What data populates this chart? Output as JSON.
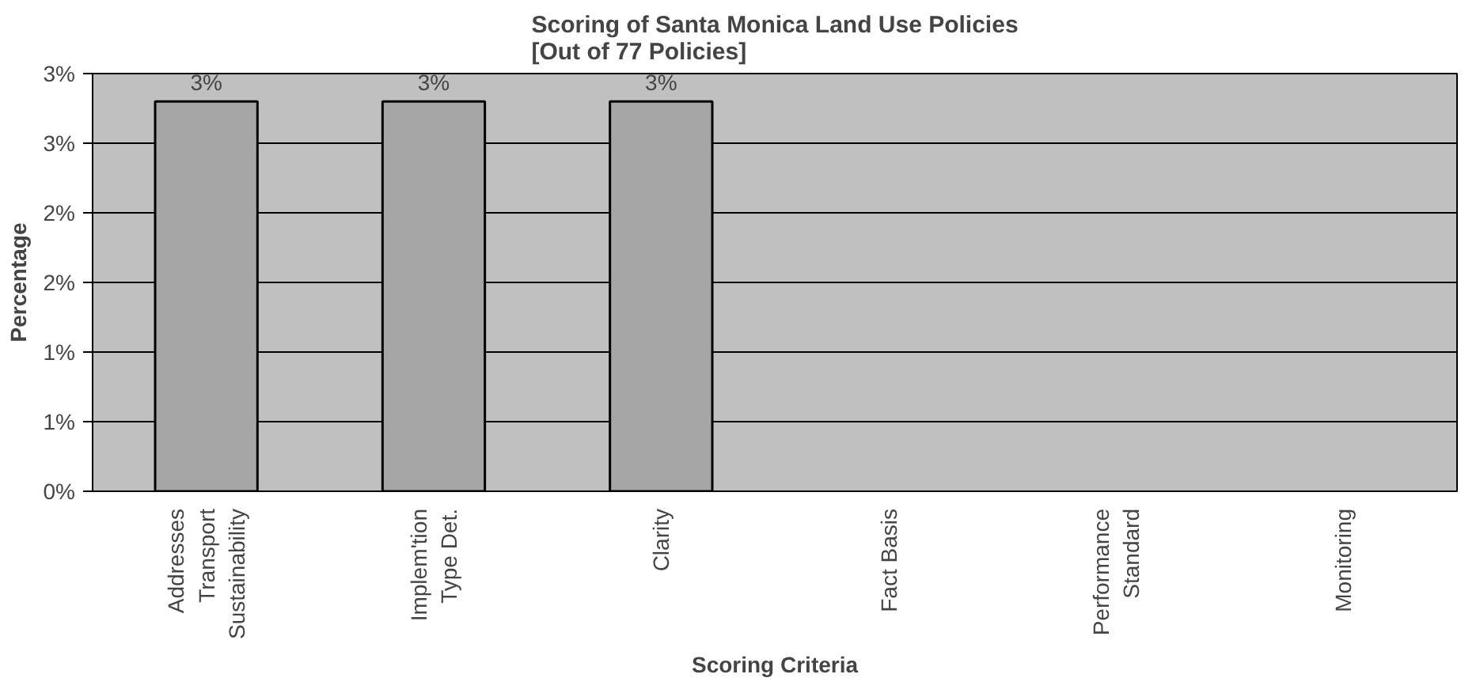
{
  "chart_data": {
    "type": "bar",
    "title": "Scoring of Santa Monica Land Use Policies\n[Out of 77 Policies]",
    "xlabel": "Scoring Criteria",
    "ylabel": "Percentage",
    "categories": [
      "Addresses\nTransport\nSustainability",
      "Implem'tion\nType Det.",
      "Clarity",
      "Fact Basis",
      "Performance\nStandard",
      "Monitoring"
    ],
    "values": [
      2.8,
      2.8,
      2.8,
      null,
      null,
      null
    ],
    "value_labels": [
      "3%",
      "3%",
      "3%",
      null,
      null,
      null
    ],
    "color": "#a6a6a6",
    "ylim": [
      0,
      3
    ],
    "yticks": [
      {
        "value": 0,
        "label": "0%"
      },
      {
        "value": 0.5,
        "label": "1%"
      },
      {
        "value": 1,
        "label": "1%"
      },
      {
        "value": 1.5,
        "label": "2%"
      },
      {
        "value": 2,
        "label": "2%"
      },
      {
        "value": 2.5,
        "label": "3%"
      },
      {
        "value": 3,
        "label": "3%"
      }
    ],
    "grid": "y"
  }
}
